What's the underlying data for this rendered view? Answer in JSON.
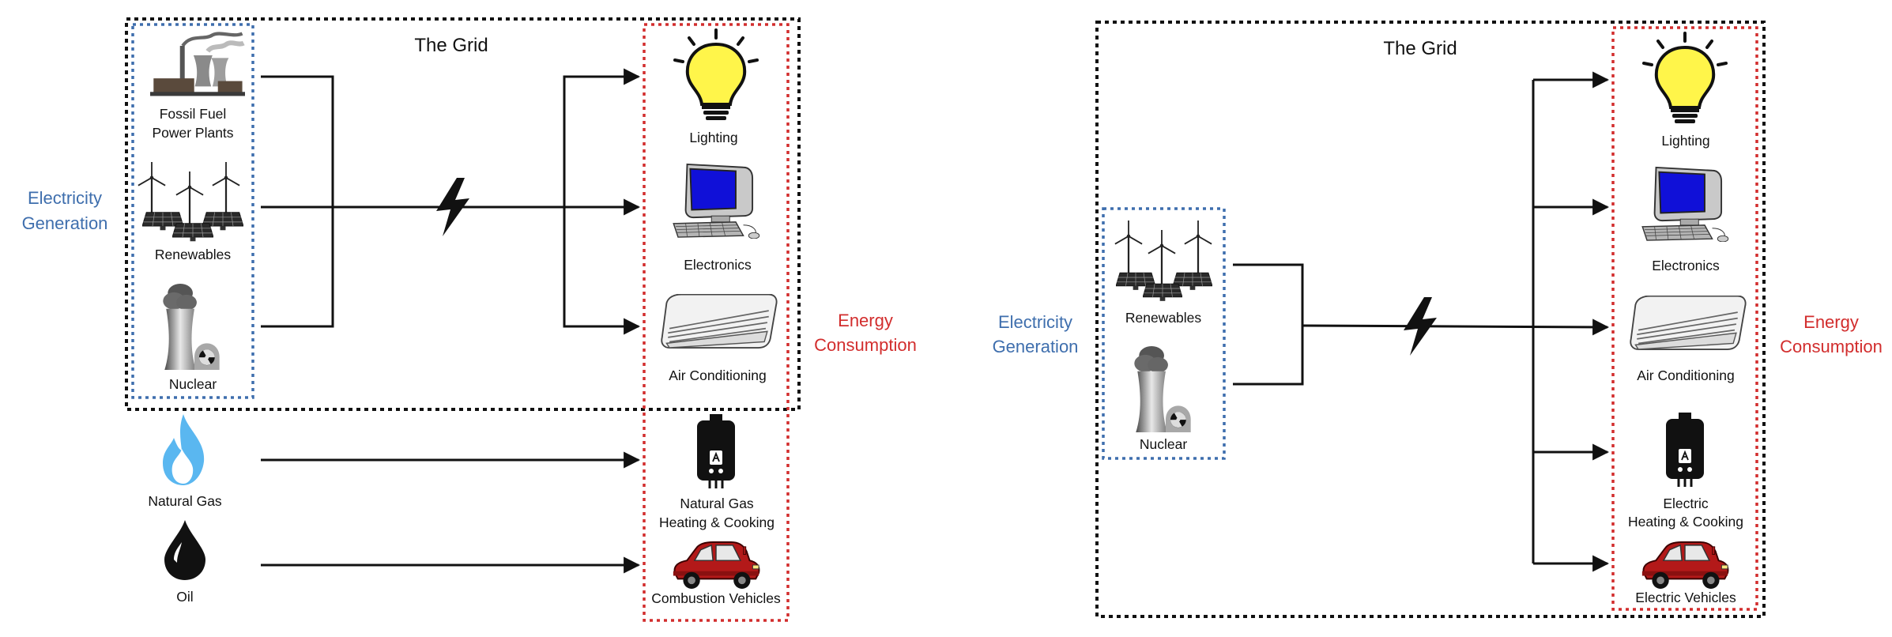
{
  "colors": {
    "grid_border": "#111111",
    "generation_border": "#3e6ead",
    "consumption_border": "#d22d2d",
    "generation_text": "#3e6ead",
    "consumption_text": "#d22d2d",
    "bulb": "#fff54a",
    "screen": "#1010d8",
    "flame": "#5ab7f0",
    "car": "#b31919"
  },
  "left": {
    "grid_title": "The Grid",
    "generation_label": [
      "Electricity",
      "Generation"
    ],
    "consumption_label": [
      "Energy",
      "Consumption"
    ],
    "sources": {
      "fossil": [
        "Fossil Fuel",
        "Power Plants"
      ],
      "renewables": "Renewables",
      "nuclear": "Nuclear",
      "natural_gas": "Natural Gas",
      "oil": "Oil"
    },
    "uses": {
      "lighting": "Lighting",
      "electronics": "Electronics",
      "air_conditioning": "Air Conditioning",
      "heating": [
        "Natural Gas",
        "Heating & Cooking"
      ],
      "vehicles": "Combustion Vehicles"
    }
  },
  "right": {
    "grid_title": "The Grid",
    "generation_label": [
      "Electricity",
      "Generation"
    ],
    "consumption_label": [
      "Energy",
      "Consumption"
    ],
    "sources": {
      "renewables": "Renewables",
      "nuclear": "Nuclear"
    },
    "uses": {
      "lighting": "Lighting",
      "electronics": "Electronics",
      "air_conditioning": "Air Conditioning",
      "heating": [
        "Electric",
        "Heating & Cooking"
      ],
      "vehicles": "Electric Vehicles"
    }
  },
  "icons": [
    "power-plant-icon",
    "wind-solar-icon",
    "nuclear-icon",
    "flame-icon",
    "oil-drop-icon",
    "bulb-icon",
    "computer-icon",
    "air-conditioner-icon",
    "water-heater-icon",
    "car-icon",
    "lightning-icon"
  ]
}
